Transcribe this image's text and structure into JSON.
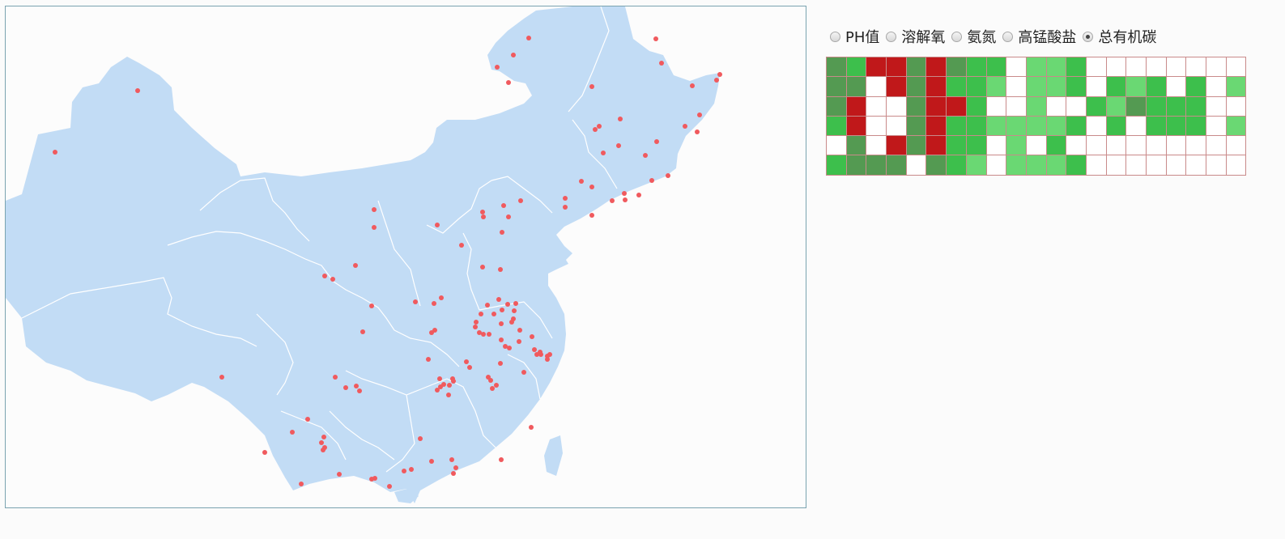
{
  "map": {
    "region": "China",
    "land_color": "#c2dcf5",
    "border_color": "#ffffff",
    "station_color": "#f05a5e"
  },
  "indicator_options": [
    {
      "label": "PH值",
      "selected": false
    },
    {
      "label": "溶解氧",
      "selected": false
    },
    {
      "label": "氨氮",
      "selected": false
    },
    {
      "label": "高锰酸盐",
      "selected": false
    },
    {
      "label": "总有机碳",
      "selected": true
    }
  ],
  "legend_colors": {
    "W": "#ffffff",
    "D": "#549a52",
    "G": "#3dbf4c",
    "L": "#6ad873",
    "R": "#c0181a"
  },
  "grid_rows": [
    [
      "D",
      "G",
      "R",
      "R",
      "D",
      "R",
      "D",
      "G",
      "G",
      "W",
      "L",
      "L",
      "G",
      "W",
      "W",
      "W",
      "W",
      "W",
      "W",
      "W",
      "W"
    ],
    [
      "D",
      "D",
      "W",
      "R",
      "D",
      "R",
      "G",
      "G",
      "L",
      "W",
      "L",
      "L",
      "G",
      "W",
      "G",
      "L",
      "G",
      "W",
      "G",
      "W",
      "L"
    ],
    [
      "D",
      "R",
      "W",
      "W",
      "D",
      "R",
      "R",
      "G",
      "W",
      "W",
      "L",
      "W",
      "W",
      "G",
      "L",
      "D",
      "G",
      "G",
      "G",
      "W",
      "W"
    ],
    [
      "G",
      "R",
      "W",
      "W",
      "D",
      "R",
      "G",
      "G",
      "L",
      "L",
      "L",
      "L",
      "G",
      "W",
      "G",
      "W",
      "G",
      "G",
      "G",
      "W",
      "L"
    ],
    [
      "W",
      "D",
      "W",
      "R",
      "D",
      "R",
      "G",
      "G",
      "W",
      "L",
      "W",
      "G",
      "W",
      "W",
      "W",
      "W",
      "W",
      "W",
      "W",
      "W",
      "W"
    ],
    [
      "G",
      "D",
      "D",
      "D",
      "W",
      "D",
      "G",
      "L",
      "W",
      "L",
      "L",
      "L",
      "G",
      "W",
      "W",
      "W",
      "W",
      "W",
      "W",
      "W",
      "W"
    ]
  ]
}
